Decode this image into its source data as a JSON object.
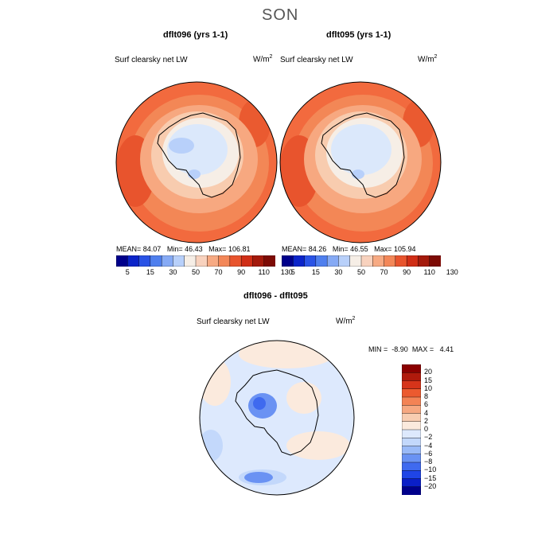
{
  "season": "SON",
  "panels": [
    {
      "title": "dflt096 (yrs 1-1)",
      "variable": "Surf clearsky net LW",
      "units_base": "W/m",
      "units_exp": "2",
      "stats": {
        "mean_label": "MEAN=",
        "mean": "84.07",
        "min_label": "Min=",
        "min": "46.43",
        "max_label": "Max=",
        "max": "106.81"
      }
    },
    {
      "title": "dflt095 (yrs 1-1)",
      "variable": "Surf clearsky net LW",
      "units_base": "W/m",
      "units_exp": "2",
      "stats": {
        "mean_label": "MEAN=",
        "mean": "84.26",
        "min_label": "Min=",
        "min": "46.55",
        "max_label": "Max=",
        "max": "105.94"
      }
    },
    {
      "title": "dflt096 - dflt095",
      "variable": "Surf clearsky net LW",
      "units_base": "W/m",
      "units_exp": "2",
      "stats": {
        "min_label": "MIN =",
        "min": "-8.90",
        "max_label": "MAX =",
        "max": "4.41"
      }
    }
  ],
  "colorbar_abs": {
    "colors": [
      "#00008b",
      "#0b24c9",
      "#2a53e6",
      "#4f7fee",
      "#86aaf5",
      "#b8d0fa",
      "#f6eee6",
      "#f8d2be",
      "#f7aa83",
      "#f38758",
      "#e8542d",
      "#d02e16",
      "#a41a0c",
      "#7d0b05"
    ],
    "tick_labels": [
      "5",
      "15",
      "30",
      "50",
      "70",
      "90",
      "110",
      "130"
    ]
  },
  "colorbar_diff": {
    "colors": [
      "#00008b",
      "#0a1fc8",
      "#1f45e6",
      "#3f6aef",
      "#6a92f3",
      "#9abaf7",
      "#c3d8fb",
      "#dde9fd",
      "#fbeadd",
      "#f8cdb1",
      "#f6a881",
      "#f38355",
      "#ec5a2f",
      "#d6341a",
      "#b01a0c",
      "#8b0000"
    ],
    "tick_labels": [
      "20",
      "15",
      "10",
      "8",
      "6",
      "4",
      "2",
      "0",
      "−2",
      "−4",
      "−6",
      "−8",
      "−10",
      "−15",
      "−20"
    ]
  }
}
